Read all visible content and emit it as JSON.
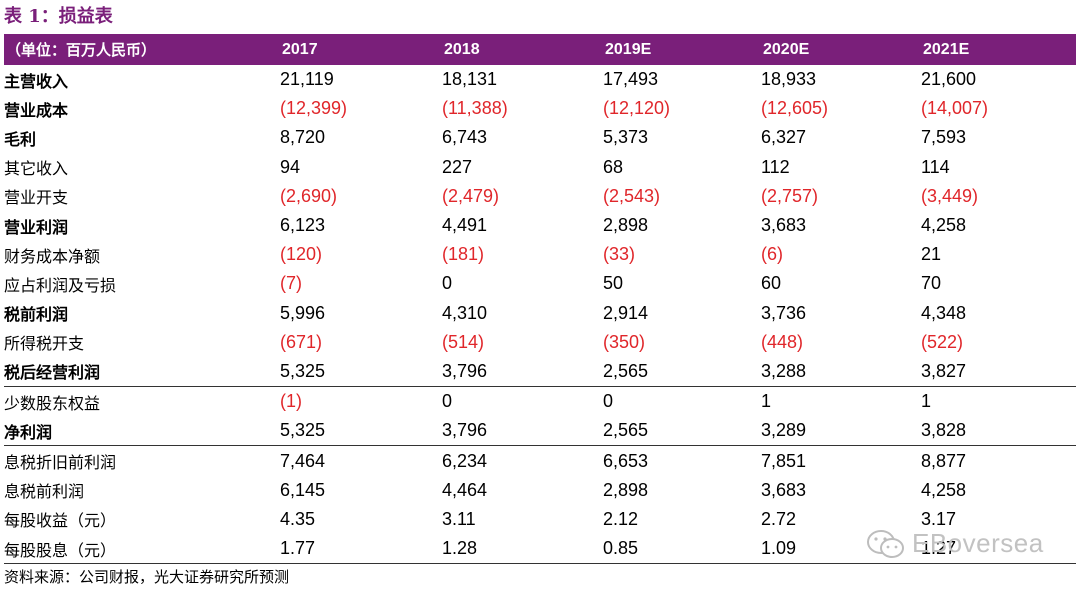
{
  "title": "表 1：损益表",
  "header": {
    "label": "（单位：百万人民币）",
    "years": [
      "2017",
      "2018",
      "2019E",
      "2020E",
      "2021E"
    ]
  },
  "rows": [
    {
      "label": "主营收入",
      "bold": true,
      "values": [
        "21,119",
        "18,131",
        "17,493",
        "18,933",
        "21,600"
      ]
    },
    {
      "label": "营业成本",
      "bold": true,
      "values": [
        "(12,399)",
        "(11,388)",
        "(12,120)",
        "(12,605)",
        "(14,007)"
      ]
    },
    {
      "label": "毛利",
      "bold": true,
      "values": [
        "8,720",
        "6,743",
        "5,373",
        "6,327",
        "7,593"
      ]
    },
    {
      "label": "其它收入",
      "bold": false,
      "values": [
        "94",
        "227",
        "68",
        "112",
        "114"
      ]
    },
    {
      "label": "营业开支",
      "bold": false,
      "values": [
        "(2,690)",
        "(2,479)",
        "(2,543)",
        "(2,757)",
        "(3,449)"
      ]
    },
    {
      "label": "营业利润",
      "bold": true,
      "values": [
        "6,123",
        "4,491",
        "2,898",
        "3,683",
        "4,258"
      ]
    },
    {
      "label": "财务成本净额",
      "bold": false,
      "values": [
        "(120)",
        "(181)",
        "(33)",
        "(6)",
        "21"
      ]
    },
    {
      "label": "应占利润及亏损",
      "bold": false,
      "values": [
        "(7)",
        "0",
        "50",
        "60",
        "70"
      ]
    },
    {
      "label": "税前利润",
      "bold": true,
      "values": [
        "5,996",
        "4,310",
        "2,914",
        "3,736",
        "4,348"
      ]
    },
    {
      "label": "所得税开支",
      "bold": false,
      "values": [
        "(671)",
        "(514)",
        "(350)",
        "(448)",
        "(522)"
      ]
    },
    {
      "label": "税后经营利润",
      "bold": true,
      "values": [
        "5,325",
        "3,796",
        "2,565",
        "3,288",
        "3,827"
      ]
    },
    {
      "label": "少数股东权益",
      "bold": false,
      "values": [
        "(1)",
        "0",
        "0",
        "1",
        "1"
      ]
    },
    {
      "label": "净利润",
      "bold": true,
      "values": [
        "5,325",
        "3,796",
        "2,565",
        "3,289",
        "3,828"
      ]
    },
    {
      "label": "息税折旧前利润",
      "bold": false,
      "values": [
        "7,464",
        "6,234",
        "6,653",
        "7,851",
        "8,877"
      ]
    },
    {
      "label": "息税前利润",
      "bold": false,
      "values": [
        "6,145",
        "4,464",
        "2,898",
        "3,683",
        "4,258"
      ]
    },
    {
      "label": "每股收益（元）",
      "bold": false,
      "values": [
        "4.35",
        "3.11",
        "2.12",
        "2.72",
        "3.17"
      ]
    },
    {
      "label": "每股股息（元）",
      "bold": false,
      "values": [
        "1.77",
        "1.28",
        "0.85",
        "1.09",
        "1.27"
      ]
    }
  ],
  "source": "资料来源：公司财报，光大证券研究所预测",
  "watermark": "EBoversea",
  "colors": {
    "header_bg": "#7a1f7a",
    "negative": "#e0262a",
    "title": "#7a1f7a"
  }
}
